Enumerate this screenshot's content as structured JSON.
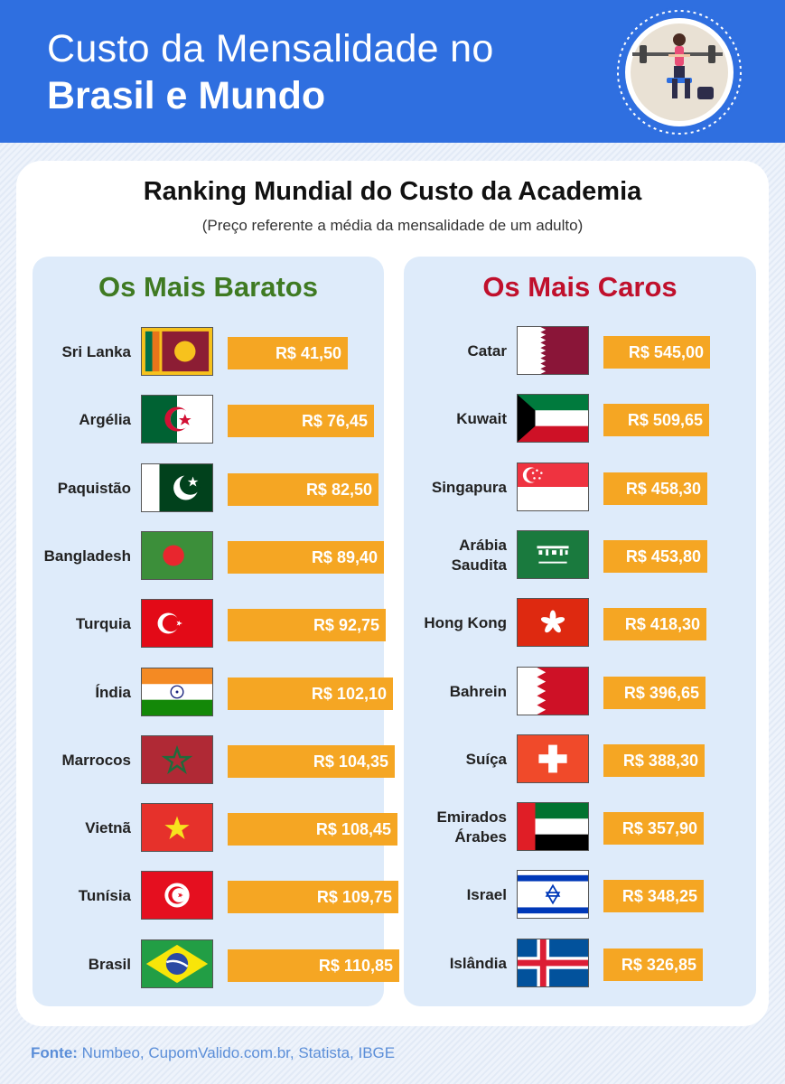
{
  "header": {
    "line1": "Custo da Mensalidade no",
    "line2": "Brasil e Mundo",
    "logo_icon": "gym-woman-lifting-icon"
  },
  "chart_data": [
    {
      "type": "bar",
      "title": "Ranking Mundial do Custo da Academia",
      "subtitle": "(Preço referente a média da mensalidade de um adulto)",
      "heading": "Os Mais Baratos",
      "heading_color": "#3f7a22",
      "bar_color": "#f5a623",
      "categories": [
        "Sri Lanka",
        "Argélia",
        "Paquistão",
        "Bangladesh",
        "Turquia",
        "Índia",
        "Marrocos",
        "Vietnã",
        "Tunísia",
        "Brasil"
      ],
      "values": [
        41.5,
        76.45,
        82.5,
        89.4,
        92.75,
        102.1,
        104.35,
        108.45,
        109.75,
        110.85
      ],
      "labels": [
        "R$ 41,50",
        "R$ 76,45",
        "R$ 82,50",
        "R$ 89,40",
        "R$ 92,75",
        "R$ 102,10",
        "R$ 104,35",
        "R$ 108,45",
        "R$ 109,75",
        "R$ 110,85"
      ],
      "flags": [
        "sri-lanka-flag-icon",
        "algeria-flag-icon",
        "pakistan-flag-icon",
        "bangladesh-flag-icon",
        "turkey-flag-icon",
        "india-flag-icon",
        "morocco-flag-icon",
        "vietnam-flag-icon",
        "tunisia-flag-icon",
        "brazil-flag-icon"
      ]
    },
    {
      "type": "bar",
      "heading": "Os Mais Caros",
      "heading_color": "#c0102c",
      "bar_color": "#f5a623",
      "categories": [
        "Catar",
        "Kuwait",
        "Singapura",
        "Arábia Saudita",
        "Hong Kong",
        "Bahrein",
        "Suíça",
        "Emirados Árabes",
        "Israel",
        "Islândia"
      ],
      "values": [
        545.0,
        509.65,
        458.3,
        453.8,
        418.3,
        396.65,
        388.3,
        357.9,
        348.25,
        326.85
      ],
      "labels": [
        "R$ 545,00",
        "R$ 509,65",
        "R$ 458,30",
        "R$ 453,80",
        "R$ 418,30",
        "R$ 396,65",
        "R$ 388,30",
        "R$ 357,90",
        "R$ 348,25",
        "R$ 326,85"
      ],
      "flags": [
        "qatar-flag-icon",
        "kuwait-flag-icon",
        "singapore-flag-icon",
        "saudi-arabia-flag-icon",
        "hong-kong-flag-icon",
        "bahrain-flag-icon",
        "switzerland-flag-icon",
        "uae-flag-icon",
        "israel-flag-icon",
        "iceland-flag-icon"
      ]
    }
  ],
  "source": {
    "label": "Fonte:",
    "text": " Numbeo, CupomValido.com.br, Statista, IBGE"
  }
}
